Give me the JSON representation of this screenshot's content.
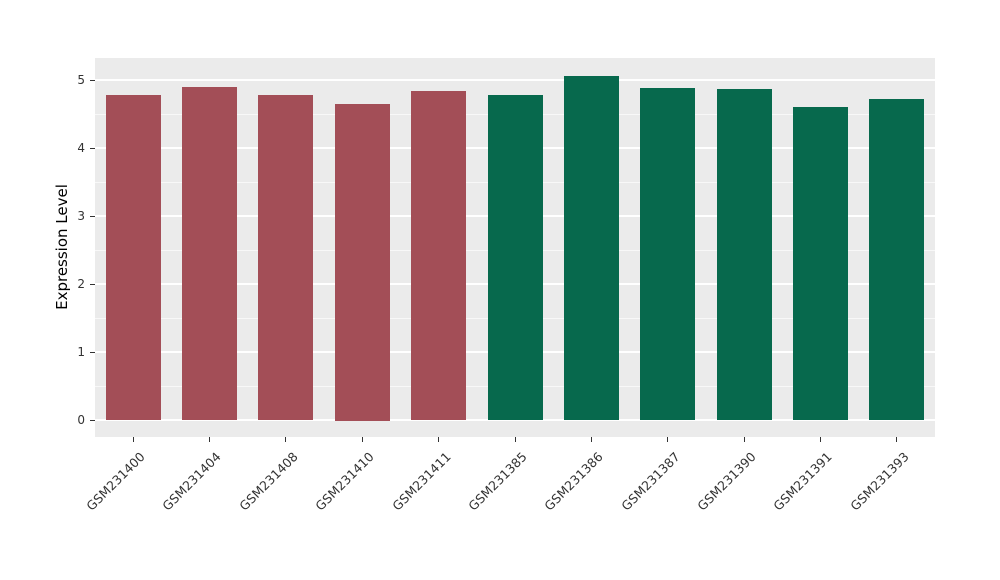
{
  "chart_data": {
    "type": "bar",
    "title": "",
    "xlabel": "",
    "ylabel": "Expression Level",
    "categories": [
      "GSM231400",
      "GSM231404",
      "GSM231408",
      "GSM231410",
      "GSM231411",
      "GSM231385",
      "GSM231386",
      "GSM231387",
      "GSM231390",
      "GSM231391",
      "GSM231393"
    ],
    "values": [
      4.78,
      4.91,
      4.78,
      4.66,
      4.84,
      4.78,
      5.07,
      4.89,
      4.87,
      4.61,
      4.72
    ],
    "bar_colors": [
      "#A34E57",
      "#A34E57",
      "#A34E57",
      "#A34E57",
      "#A34E57",
      "#07694D",
      "#07694D",
      "#07694D",
      "#07694D",
      "#07694D",
      "#07694D"
    ],
    "group_colors": {
      "red_group": "#A34E57",
      "green_group": "#07694D"
    },
    "ylim": [
      0,
      5
    ],
    "yticks": [
      0,
      1,
      2,
      3,
      4,
      5
    ],
    "minor_ticks": [
      0.5,
      1.5,
      2.5,
      3.5,
      4.5
    ],
    "grid": true,
    "legend_position": "none",
    "panel_background": "#EBEBEB",
    "gridline_color": "#FFFFFF",
    "axis_text_color": "#333333"
  }
}
